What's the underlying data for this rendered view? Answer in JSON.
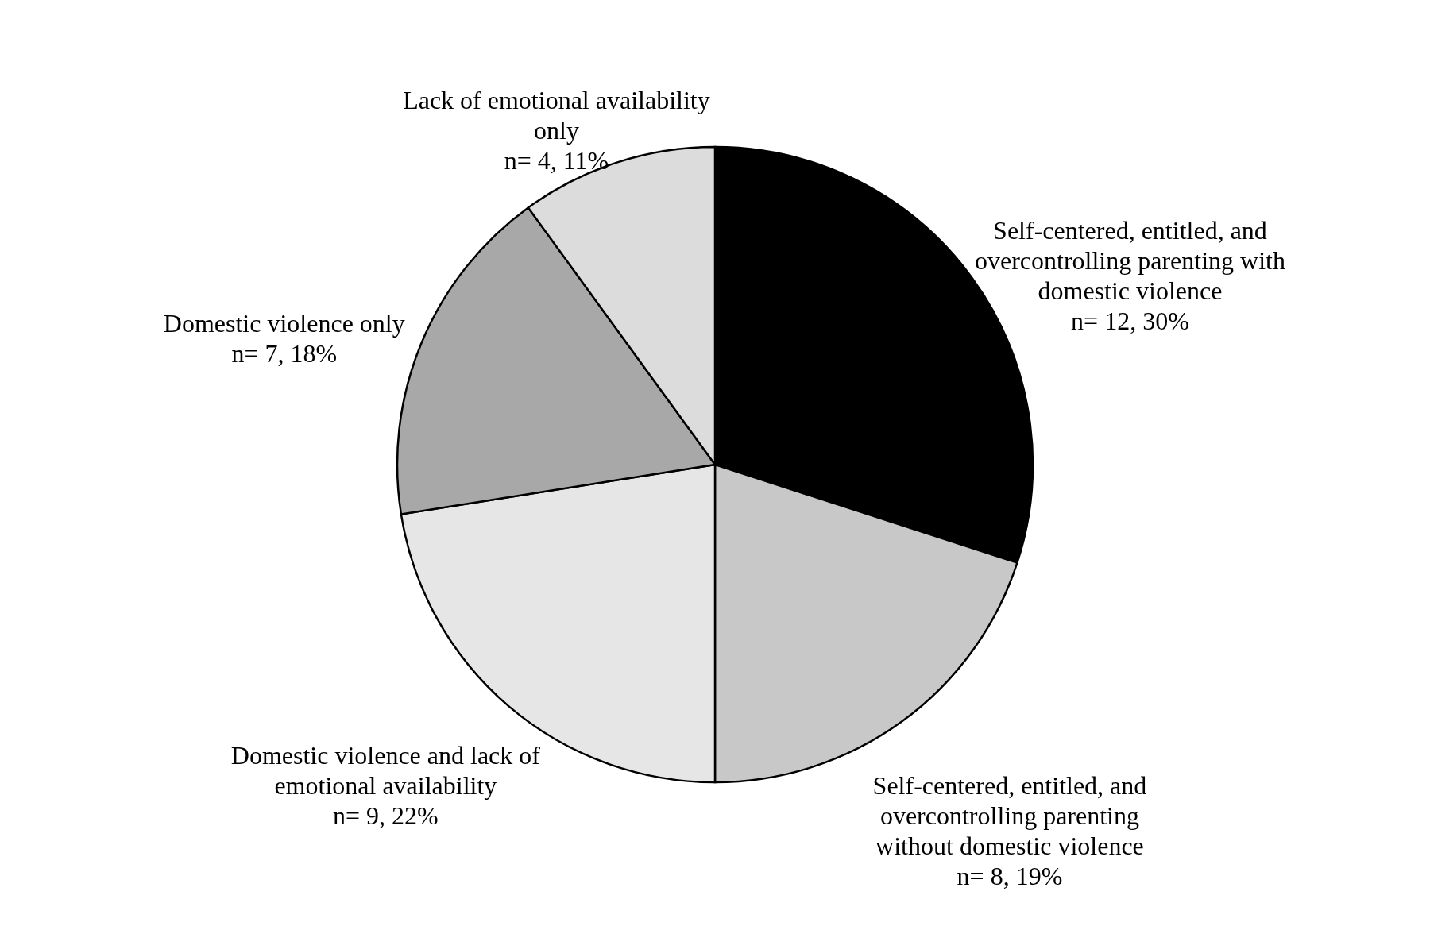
{
  "chart_data": {
    "type": "pie",
    "categories": [
      "Self-centered, entitled, and overcontrolling parenting with domestic violence",
      "Self-centered, entitled, and overcontrolling parenting without domestic violence",
      "Domestic violence and lack of emotional availability",
      "Domestic violence only",
      "Lack of emotional availability only"
    ],
    "values": [
      12,
      8,
      9,
      7,
      4
    ],
    "value_labels": [
      "n= 12, 30%",
      "n= 8, 19%",
      "n= 9, 22%",
      "n= 7, 18%",
      "n= 4, 11%"
    ],
    "colors": [
      "#000000",
      "#c8c8c8",
      "#e6e6e6",
      "#a8a8a8",
      "#dcdcdc"
    ]
  }
}
